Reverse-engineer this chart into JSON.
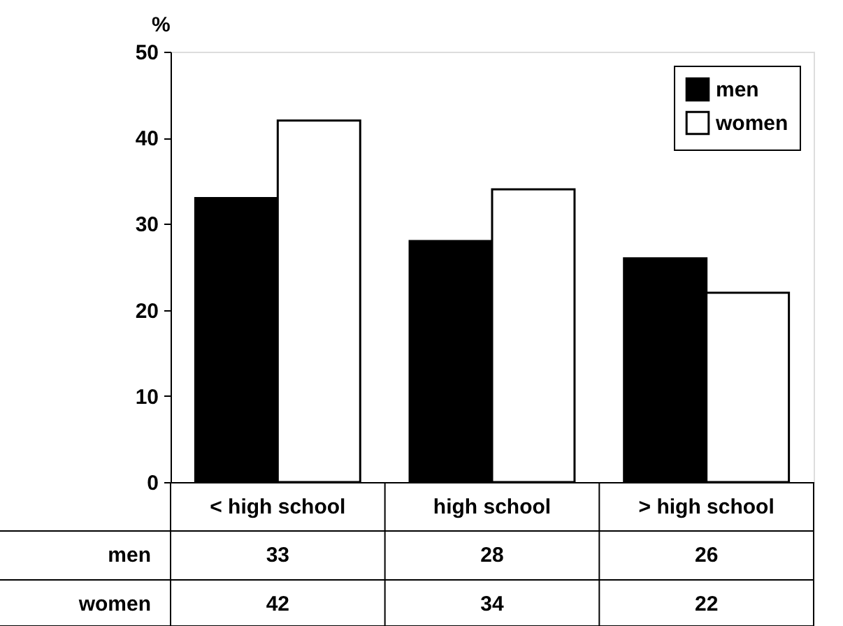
{
  "chart_data": {
    "type": "bar",
    "ylabel": "%",
    "categories": [
      "< high school",
      "high school",
      "> high school"
    ],
    "series": [
      {
        "name": "men",
        "color": "#000000",
        "values": [
          33,
          28,
          26
        ]
      },
      {
        "name": "women",
        "color": "#ffffff",
        "values": [
          42,
          34,
          22
        ]
      }
    ],
    "ylim": [
      0,
      50
    ],
    "yticks": [
      0,
      10,
      20,
      30,
      40,
      50
    ],
    "grid": false,
    "legend": "top right",
    "data_labels": true
  }
}
